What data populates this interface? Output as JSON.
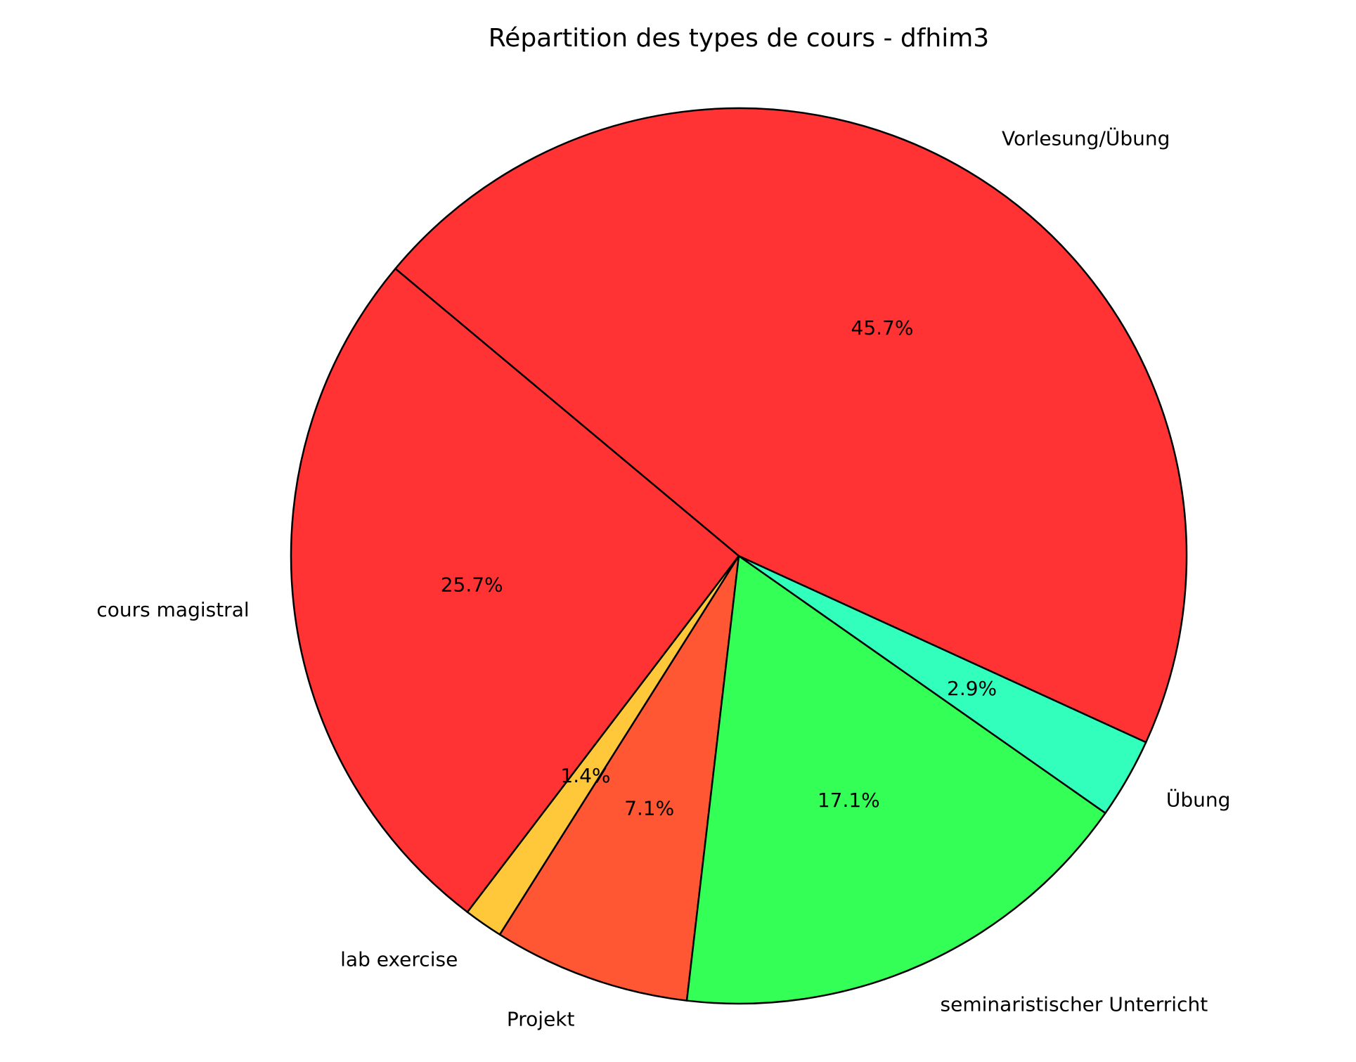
{
  "chart_data": {
    "type": "pie",
    "title": "Répartition des types de cours - dfhim3",
    "categories": [
      "Vorlesung/Übung",
      "cours magistral",
      "lab exercise",
      "Projekt",
      "seminaristischer Unterricht",
      "Übung"
    ],
    "values": [
      45.7,
      25.7,
      1.4,
      7.1,
      17.1,
      2.9
    ],
    "value_labels": [
      "45.7%",
      "25.7%",
      "1.4%",
      "7.1%",
      "17.1%",
      "2.9%"
    ],
    "colors": [
      "#ff3333",
      "#ff3333",
      "#ffc83a",
      "#ff5733",
      "#33ff57",
      "#33ffbd"
    ]
  }
}
